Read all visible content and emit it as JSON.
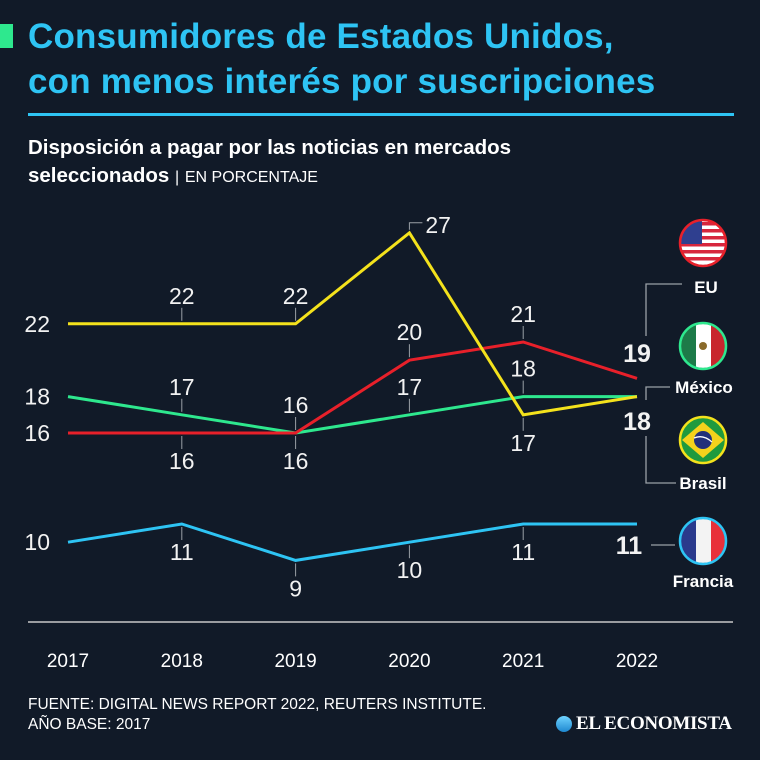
{
  "header": {
    "title_line1": "Consumidores de Estados Unidos,",
    "title_line2": "con menos interés por suscripciones",
    "subtitle_line1": "Disposición a pagar por las noticias en mercados",
    "subtitle_line2": "seleccionados",
    "unit_separator": "|",
    "unit": "EN PORCENTAJE"
  },
  "colors": {
    "background": "#111a28",
    "title": "#2ec4f4",
    "accent": "#2ee88e"
  },
  "footer": {
    "source_line1": "FUENTE: DIGITAL NEWS REPORT 2022, REUTERS INSTITUTE.",
    "source_line2": "AÑO BASE: 2017",
    "logo": "EL ECONOMISTA"
  },
  "chart_data": {
    "type": "line",
    "title": "Disposición a pagar por las noticias en mercados seleccionados",
    "unit": "EN PORCENTAJE",
    "xlabel": "",
    "ylabel": "",
    "x": [
      "2017",
      "2018",
      "2019",
      "2020",
      "2021",
      "2022"
    ],
    "ylim": [
      9,
      27
    ],
    "grid": false,
    "legend": "right (flag icons with country names)",
    "series": [
      {
        "name": "Brasil",
        "color": "#f4e21c",
        "flag": "brazil-flag",
        "values": [
          22,
          22,
          22,
          27,
          17,
          18
        ],
        "label_pos": [
          "left",
          "above",
          "above",
          "above-right",
          "below",
          "end"
        ]
      },
      {
        "name": "EU",
        "color": "#e8202a",
        "flag": "usa-flag",
        "values": [
          16,
          16,
          16,
          20,
          21,
          19
        ],
        "label_pos": [
          "left",
          "below",
          "below",
          "above",
          "above",
          "end"
        ]
      },
      {
        "name": "México",
        "color": "#2ee88e",
        "flag": "mexico-flag",
        "values": [
          18,
          17,
          16,
          17,
          18,
          18
        ],
        "label_pos": [
          "left",
          "above",
          "above",
          "above",
          "above",
          "end"
        ]
      },
      {
        "name": "Francia",
        "color": "#2ec4f4",
        "flag": "france-flag",
        "values": [
          10,
          11,
          9,
          10,
          11,
          11
        ],
        "label_pos": [
          "left",
          "below",
          "below",
          "below",
          "below",
          "end"
        ]
      }
    ],
    "end_labels": [
      {
        "value": "19",
        "countries": [
          "EU"
        ]
      },
      {
        "value": "18",
        "countries": [
          "México",
          "Brasil"
        ]
      },
      {
        "value": "11",
        "countries": [
          "Francia"
        ]
      }
    ]
  }
}
